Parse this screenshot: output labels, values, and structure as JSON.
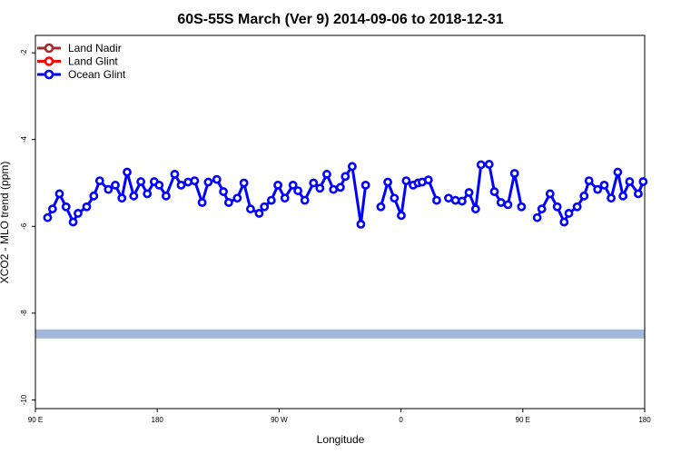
{
  "chart_data": {
    "type": "line",
    "title": "60S-55S March (Ver 9)   2014-09-06 to 2018-12-31",
    "xlabel": "Longitude",
    "ylabel": "XCO2 - MLO trend (ppm)",
    "xlim": [
      90,
      450
    ],
    "ylim": [
      -10.2,
      -1.6
    ],
    "x_ticks": [
      {
        "value": 90,
        "label": "90 E"
      },
      {
        "value": 162,
        "label": "180"
      },
      {
        "value": 234,
        "label": "90 W"
      },
      {
        "value": 306,
        "label": "0"
      },
      {
        "value": 378,
        "label": "90 E"
      },
      {
        "value": 450,
        "label": "180"
      }
    ],
    "y_ticks": [
      {
        "value": -2,
        "label": "-2"
      },
      {
        "value": -4,
        "label": "-4"
      },
      {
        "value": -6,
        "label": "-6"
      },
      {
        "value": -8,
        "label": "-8"
      },
      {
        "value": -10,
        "label": "-10"
      }
    ],
    "band": {
      "y": -8.48,
      "color": "#a4b8dc"
    },
    "legend": {
      "position": "top-left",
      "entries": [
        {
          "name": "Land Nadir",
          "color": "#a52a2a"
        },
        {
          "name": "Land Glint",
          "color": "#ff0000"
        },
        {
          "name": "Ocean Glint",
          "color": "#0000ff"
        }
      ]
    },
    "series": [
      {
        "name": "Ocean Glint",
        "color": "#0000ff",
        "segments": [
          [
            [
              97.2,
              -5.8
            ],
            [
              100.1,
              -5.6
            ],
            [
              104.2,
              -5.25
            ],
            [
              108.1,
              -5.55
            ],
            [
              112.3,
              -5.9
            ],
            [
              115.2,
              -5.7
            ],
            [
              120.3,
              -5.55
            ],
            [
              124.5,
              -5.3
            ],
            [
              128.0,
              -4.95
            ],
            [
              133.1,
              -5.15
            ],
            [
              137.2,
              -5.05
            ],
            [
              141.1,
              -5.35
            ],
            [
              144.2,
              -4.75
            ],
            [
              148.1,
              -5.3
            ],
            [
              152.3,
              -4.97
            ],
            [
              156.1,
              -5.25
            ],
            [
              160.2,
              -4.97
            ],
            [
              163.1,
              -5.05
            ],
            [
              167.2,
              -5.3
            ],
            [
              172.3,
              -4.8
            ],
            [
              176.1,
              -5.05
            ],
            [
              180.2,
              -4.98
            ],
            [
              184.1,
              -4.95
            ],
            [
              188.5,
              -5.45
            ],
            [
              192.1,
              -4.98
            ],
            [
              197.2,
              -4.92
            ],
            [
              201.1,
              -5.2
            ],
            [
              204.2,
              -5.45
            ],
            [
              209.3,
              -5.35
            ],
            [
              213.2,
              -5.0
            ],
            [
              217.1,
              -5.6
            ],
            [
              222.2,
              -5.7
            ],
            [
              225.3,
              -5.55
            ],
            [
              229.4,
              -5.4
            ],
            [
              233.3,
              -5.05
            ],
            [
              237.4,
              -5.35
            ],
            [
              242.2,
              -5.05
            ],
            [
              245.1,
              -5.18
            ],
            [
              249.2,
              -5.4
            ],
            [
              254.3,
              -5.0
            ],
            [
              258.1,
              -5.12
            ],
            [
              262.2,
              -4.8
            ],
            [
              266.1,
              -5.15
            ],
            [
              270.2,
              -5.1
            ],
            [
              273.1,
              -4.85
            ],
            [
              277.2,
              -4.62
            ],
            [
              282.3,
              -5.95
            ],
            [
              285.1,
              -5.05
            ]
          ],
          [
            [
              294.1,
              -5.55
            ],
            [
              298.2,
              -4.98
            ],
            [
              302.1,
              -5.35
            ],
            [
              306.2,
              -5.75
            ],
            [
              309.1,
              -4.95
            ],
            [
              313.2,
              -5.05
            ],
            [
              316.1,
              -5.0
            ],
            [
              318.5,
              -4.98
            ],
            [
              322.2,
              -4.93
            ],
            [
              327.1,
              -5.4
            ]
          ],
          [
            [
              334.1,
              -5.35
            ],
            [
              338.2,
              -5.4
            ],
            [
              342.1,
              -5.42
            ],
            [
              346.2,
              -5.22
            ],
            [
              350.1,
              -5.6
            ],
            [
              353.3,
              -4.58
            ],
            [
              358.1,
              -4.57
            ],
            [
              361.2,
              -5.2
            ],
            [
              365.1,
              -5.45
            ],
            [
              369.2,
              -5.5
            ],
            [
              373.1,
              -4.78
            ],
            [
              377.2,
              -5.55
            ]
          ],
          [
            [
              386.5,
              -5.8
            ],
            [
              389.2,
              -5.6
            ],
            [
              394.1,
              -5.25
            ],
            [
              398.3,
              -5.55
            ],
            [
              402.4,
              -5.9
            ],
            [
              405.2,
              -5.7
            ],
            [
              410.1,
              -5.55
            ],
            [
              414.2,
              -5.3
            ],
            [
              417.1,
              -4.95
            ],
            [
              422.2,
              -5.15
            ],
            [
              426.1,
              -5.05
            ],
            [
              430.2,
              -5.35
            ],
            [
              434.1,
              -4.75
            ],
            [
              437.2,
              -5.3
            ],
            [
              441.1,
              -4.97
            ],
            [
              446.2,
              -5.25
            ],
            [
              449.1,
              -4.97
            ]
          ]
        ]
      }
    ]
  }
}
